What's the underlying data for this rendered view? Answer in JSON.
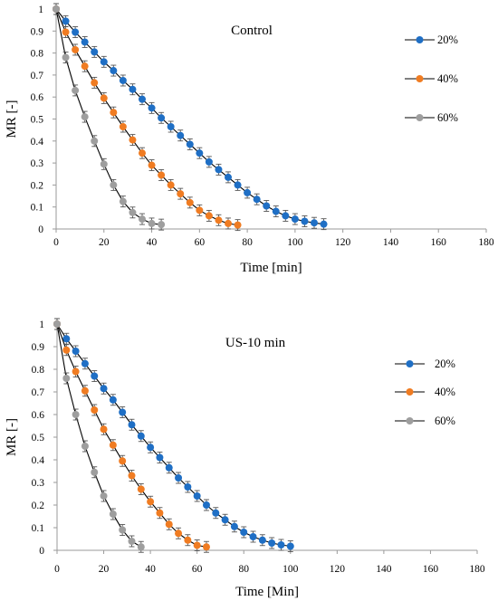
{
  "chart_data": [
    {
      "type": "scatter",
      "title": "Control",
      "xlabel": "Time [min]",
      "ylabel": "MR [-]",
      "xlim": [
        0,
        180
      ],
      "ylim": [
        0,
        1
      ],
      "x_ticks": [
        "0",
        "20",
        "40",
        "60",
        "80",
        "100",
        "120",
        "140",
        "160",
        "180"
      ],
      "y_ticks": [
        "0",
        "0.1",
        "0.2",
        "0.3",
        "0.4",
        "0.5",
        "0.6",
        "0.7",
        "0.8",
        "0.9",
        "1"
      ],
      "grid": false,
      "legend": "right",
      "error_bars": true,
      "series": [
        {
          "name": "20%",
          "color": "#1f6fc5",
          "x": [
            0,
            4,
            8,
            12,
            16,
            20,
            24,
            28,
            32,
            36,
            40,
            44,
            48,
            52,
            56,
            60,
            64,
            68,
            72,
            76,
            80,
            84,
            88,
            92,
            96,
            100,
            104,
            108,
            112
          ],
          "y": [
            1,
            0.945,
            0.895,
            0.85,
            0.805,
            0.76,
            0.72,
            0.675,
            0.635,
            0.59,
            0.55,
            0.505,
            0.465,
            0.425,
            0.385,
            0.345,
            0.305,
            0.27,
            0.235,
            0.2,
            0.165,
            0.135,
            0.105,
            0.08,
            0.06,
            0.045,
            0.035,
            0.028,
            0.022
          ]
        },
        {
          "name": "40%",
          "color": "#f07c22",
          "x": [
            0,
            4,
            8,
            12,
            16,
            20,
            24,
            28,
            32,
            36,
            40,
            44,
            48,
            52,
            56,
            60,
            64,
            68,
            72,
            76
          ],
          "y": [
            1,
            0.895,
            0.815,
            0.74,
            0.665,
            0.595,
            0.53,
            0.465,
            0.405,
            0.345,
            0.29,
            0.245,
            0.2,
            0.16,
            0.12,
            0.085,
            0.06,
            0.04,
            0.025,
            0.018
          ]
        },
        {
          "name": "60%",
          "color": "#9e9e9e",
          "x": [
            0,
            4,
            8,
            12,
            16,
            20,
            24,
            28,
            32,
            36,
            40,
            44
          ],
          "y": [
            1,
            0.78,
            0.63,
            0.51,
            0.4,
            0.295,
            0.2,
            0.125,
            0.075,
            0.045,
            0.025,
            0.02
          ]
        }
      ]
    },
    {
      "type": "scatter",
      "title": "US-10 min",
      "xlabel": "Time [Min]",
      "ylabel": "MR [-]",
      "xlim": [
        0,
        180
      ],
      "ylim": [
        0,
        1
      ],
      "x_ticks": [
        "0",
        "20",
        "40",
        "60",
        "80",
        "100",
        "120",
        "140",
        "160",
        "180"
      ],
      "y_ticks": [
        "0",
        "0.1",
        "0.2",
        "0.3",
        "0.4",
        "0.5",
        "0.6",
        "0.7",
        "0.8",
        "0.9",
        "1"
      ],
      "grid": false,
      "legend": "right",
      "error_bars": true,
      "series": [
        {
          "name": "20%",
          "color": "#1f6fc5",
          "x": [
            0,
            4,
            8,
            12,
            16,
            20,
            24,
            28,
            32,
            36,
            40,
            44,
            48,
            52,
            56,
            60,
            64,
            68,
            72,
            76,
            80,
            84,
            88,
            92,
            96,
            100
          ],
          "y": [
            1,
            0.935,
            0.88,
            0.825,
            0.77,
            0.715,
            0.665,
            0.61,
            0.555,
            0.505,
            0.455,
            0.41,
            0.365,
            0.32,
            0.28,
            0.24,
            0.2,
            0.165,
            0.135,
            0.105,
            0.08,
            0.06,
            0.045,
            0.032,
            0.024,
            0.018
          ]
        },
        {
          "name": "40%",
          "color": "#f07c22",
          "x": [
            0,
            4,
            8,
            12,
            16,
            20,
            24,
            28,
            32,
            36,
            40,
            44,
            48,
            52,
            56,
            60,
            64
          ],
          "y": [
            1,
            0.885,
            0.79,
            0.705,
            0.62,
            0.535,
            0.465,
            0.395,
            0.33,
            0.27,
            0.215,
            0.165,
            0.115,
            0.075,
            0.045,
            0.022,
            0.015
          ]
        },
        {
          "name": "60%",
          "color": "#9e9e9e",
          "x": [
            0,
            4,
            8,
            12,
            16,
            20,
            24,
            28,
            32,
            36
          ],
          "y": [
            1,
            0.76,
            0.6,
            0.46,
            0.345,
            0.24,
            0.16,
            0.09,
            0.04,
            0.015
          ]
        }
      ]
    }
  ]
}
